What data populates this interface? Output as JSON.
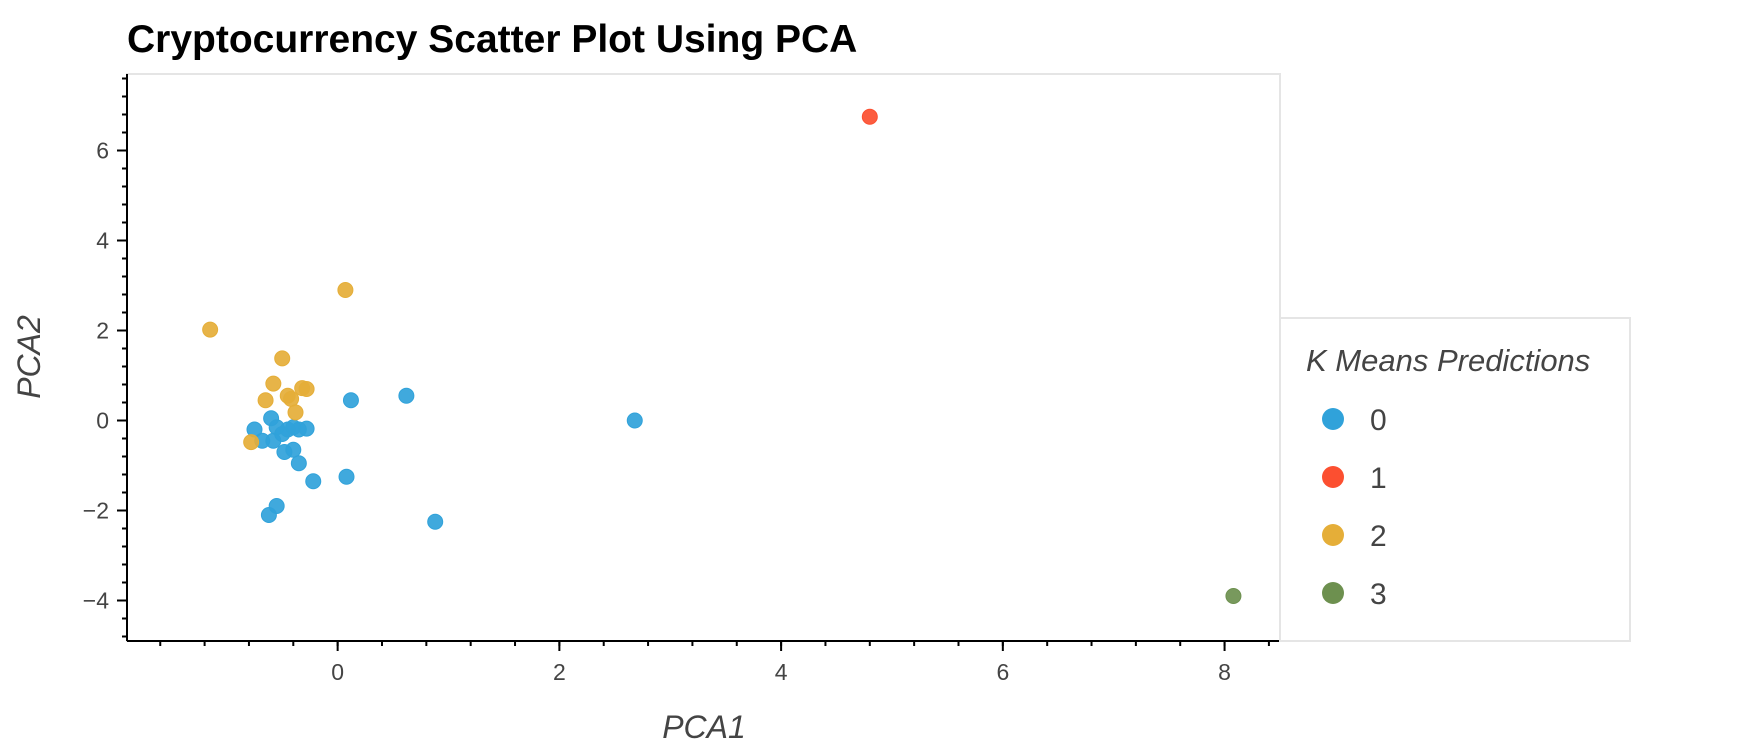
{
  "chart_data": {
    "type": "scatter",
    "title": "Cryptocurrency Scatter Plot Using PCA",
    "xlabel": "PCA1",
    "ylabel": "PCA2",
    "xlim": [
      -1.9,
      8.5
    ],
    "ylim": [
      -4.9,
      7.7
    ],
    "xticks": [
      0,
      2,
      4,
      6,
      8
    ],
    "yticks": [
      -4,
      -2,
      0,
      2,
      4,
      6
    ],
    "grid": false,
    "legend": {
      "title": "K Means Predictions",
      "position": "right"
    },
    "series": [
      {
        "name": "0",
        "color": "#30a2da",
        "points": [
          [
            -0.75,
            -0.2
          ],
          [
            -0.6,
            0.05
          ],
          [
            -0.55,
            -0.15
          ],
          [
            -0.45,
            -0.2
          ],
          [
            -0.4,
            -0.15
          ],
          [
            -0.35,
            -0.2
          ],
          [
            -0.28,
            -0.18
          ],
          [
            -0.68,
            -0.45
          ],
          [
            -0.58,
            -0.45
          ],
          [
            -0.5,
            -0.3
          ],
          [
            -0.48,
            -0.7
          ],
          [
            -0.4,
            -0.65
          ],
          [
            -0.35,
            -0.95
          ],
          [
            -0.22,
            -1.35
          ],
          [
            -0.62,
            -2.1
          ],
          [
            -0.55,
            -1.9
          ],
          [
            0.08,
            -1.25
          ],
          [
            0.12,
            0.45
          ],
          [
            0.62,
            0.55
          ],
          [
            0.88,
            -2.25
          ],
          [
            2.68,
            0.0
          ]
        ]
      },
      {
        "name": "1",
        "color": "#fc4f30",
        "points": [
          [
            4.8,
            6.75
          ]
        ]
      },
      {
        "name": "2",
        "color": "#e5ae38",
        "points": [
          [
            -1.15,
            2.02
          ],
          [
            0.07,
            2.9
          ],
          [
            -0.5,
            1.38
          ],
          [
            -0.58,
            0.82
          ],
          [
            -0.65,
            0.45
          ],
          [
            -0.45,
            0.55
          ],
          [
            -0.42,
            0.48
          ],
          [
            -0.32,
            0.72
          ],
          [
            -0.28,
            0.7
          ],
          [
            -0.38,
            0.18
          ],
          [
            -0.78,
            -0.48
          ]
        ]
      },
      {
        "name": "3",
        "color": "#6d904f",
        "points": [
          [
            8.08,
            -3.9
          ]
        ]
      }
    ]
  }
}
